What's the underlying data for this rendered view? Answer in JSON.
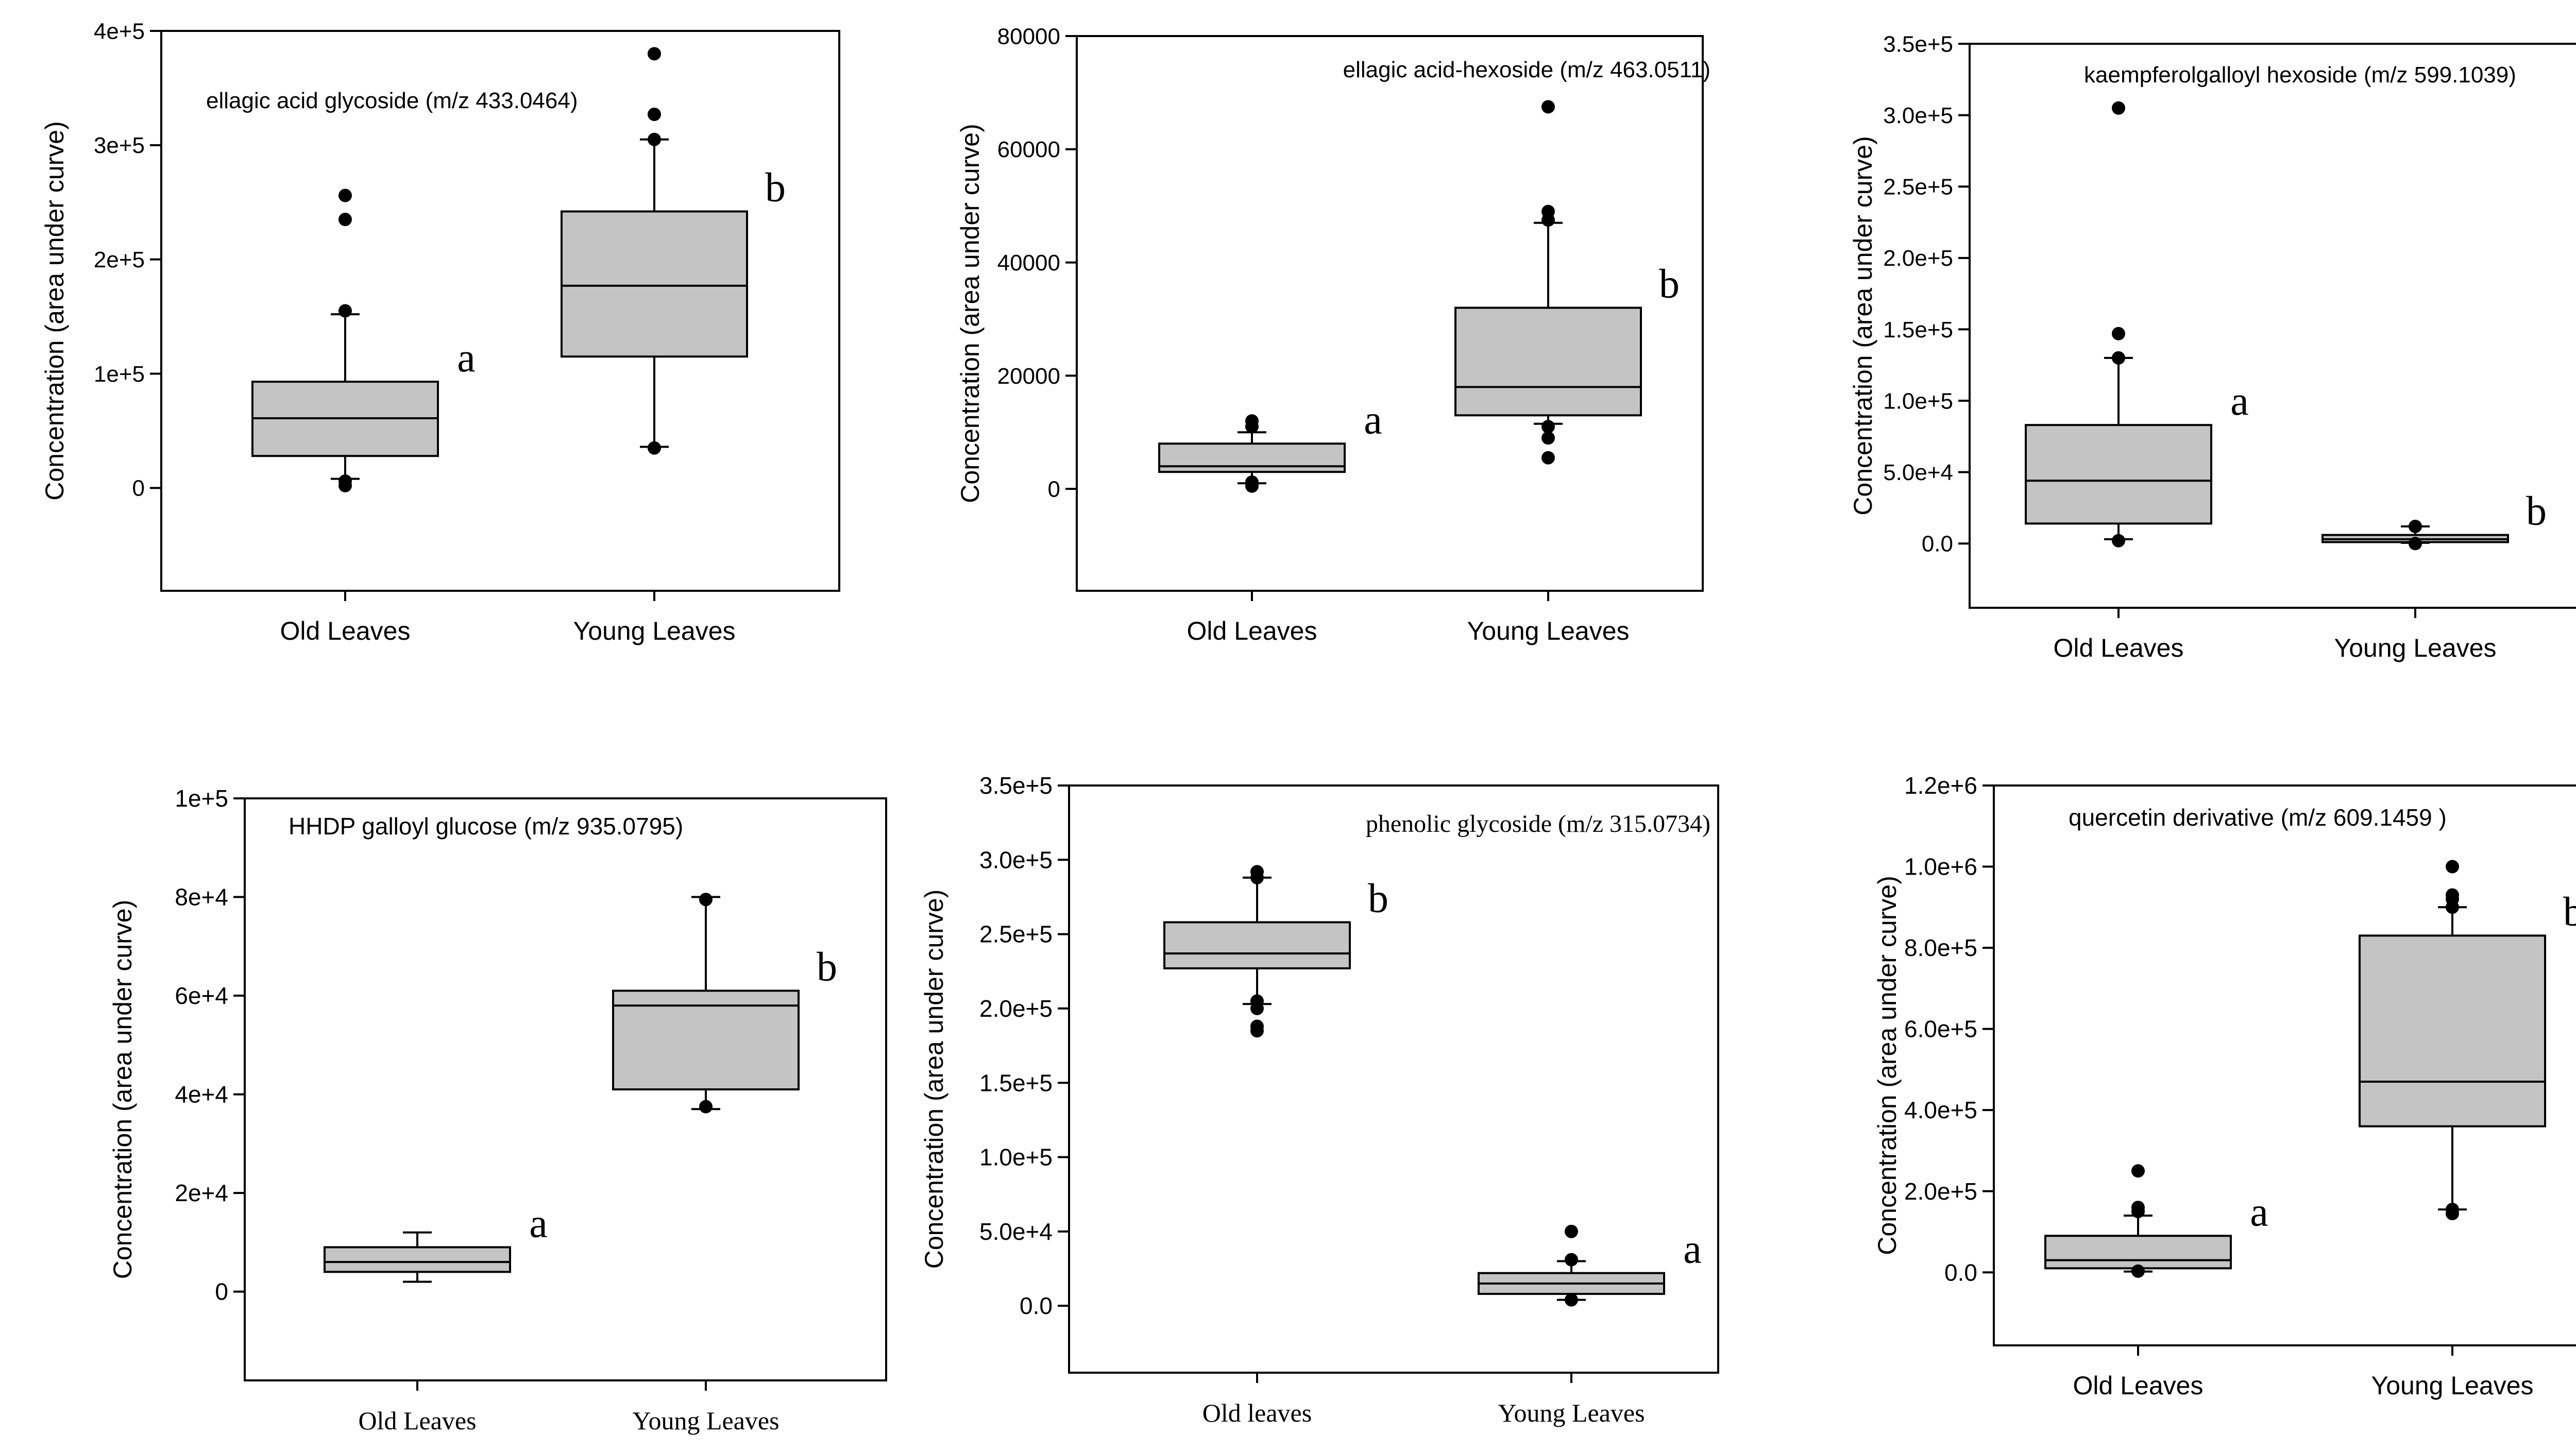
{
  "chart_data": [
    {
      "type": "boxplot",
      "panel": "top-left",
      "title": "ellagic acid glycoside (m/z 433.0464)",
      "ylabel": "Concentration (area under curve)",
      "xlabel": "",
      "ylim": [
        -90000,
        400000
      ],
      "yticks": [
        0,
        100000,
        200000,
        300000,
        400000
      ],
      "ytick_labels": [
        "0",
        "1e+5",
        "2e+5",
        "3e+5",
        "4e+5"
      ],
      "categories": [
        "Old Leaves",
        "Young  Leaves"
      ],
      "boxes": [
        {
          "q1": 28000,
          "median": 61000,
          "q3": 93000,
          "whisker_low": 8000,
          "whisker_high": 152000,
          "outliers": [
            2000,
            6000,
            155000,
            235000,
            256000
          ],
          "letter": "a"
        },
        {
          "q1": 115000,
          "median": 177000,
          "q3": 242000,
          "whisker_low": 36000,
          "whisker_high": 305000,
          "outliers": [
            35000,
            305000,
            327000,
            380000
          ],
          "letter": "b"
        }
      ]
    },
    {
      "type": "boxplot",
      "panel": "top-middle",
      "title": "ellagic acid-hexoside (m/z 463.0511)",
      "ylabel": "Concentration (area under curve)",
      "xlabel": "",
      "ylim": [
        -18000,
        80000
      ],
      "yticks": [
        0,
        20000,
        40000,
        60000,
        80000
      ],
      "ytick_labels": [
        "0",
        "20000",
        "40000",
        "60000",
        "80000"
      ],
      "categories": [
        "Old Leaves",
        "Young  Leaves"
      ],
      "boxes": [
        {
          "q1": 3000,
          "median": 4000,
          "q3": 8000,
          "whisker_low": 1000,
          "whisker_high": 10000,
          "outliers": [
            500,
            1200,
            11000,
            12000
          ],
          "letter": "a"
        },
        {
          "q1": 13000,
          "median": 18000,
          "q3": 32000,
          "whisker_low": 11500,
          "whisker_high": 47000,
          "outliers": [
            5500,
            9000,
            11000,
            47500,
            49000,
            67500
          ],
          "letter": "b"
        }
      ]
    },
    {
      "type": "boxplot",
      "panel": "top-right",
      "title": "kaempferolgalloyl hexoside (m/z 599.1039)",
      "ylabel": "Concentration (area under curve)",
      "xlabel": "",
      "ylim": [
        -45000,
        350000
      ],
      "yticks": [
        0,
        50000,
        100000,
        150000,
        200000,
        250000,
        300000,
        350000
      ],
      "ytick_labels": [
        "0.0",
        "5.0e+4",
        "1.0e+5",
        "1.5e+5",
        "2.0e+5",
        "2.5e+5",
        "3.0e+5",
        "3.5e+5"
      ],
      "categories": [
        "Old Leaves",
        "Young  Leaves"
      ],
      "boxes": [
        {
          "q1": 14000,
          "median": 44000,
          "q3": 83000,
          "whisker_low": 3000,
          "whisker_high": 130000,
          "outliers": [
            2000,
            130000,
            147000,
            305000
          ],
          "letter": "a"
        },
        {
          "q1": 1000,
          "median": 3000,
          "q3": 6000,
          "whisker_low": 500,
          "whisker_high": 12000,
          "outliers": [
            0,
            12000
          ],
          "letter": "b"
        }
      ]
    },
    {
      "type": "boxplot",
      "panel": "bottom-left",
      "title": "HHDP galloyl glucose (m/z 935.0795)",
      "ylabel": "Concentration (area under curve)",
      "xlabel": "",
      "ylim": [
        -18000,
        100000
      ],
      "yticks": [
        0,
        20000,
        40000,
        60000,
        80000,
        100000
      ],
      "ytick_labels": [
        "0",
        "2e+4",
        "4e+4",
        "6e+4",
        "8e+4",
        "1e+5"
      ],
      "categories": [
        "Old Leaves",
        "Young  Leaves"
      ],
      "boxes": [
        {
          "q1": 4000,
          "median": 6000,
          "q3": 9000,
          "whisker_low": 2000,
          "whisker_high": 12000,
          "outliers": [],
          "letter": "a"
        },
        {
          "q1": 41000,
          "median": 58000,
          "q3": 61000,
          "whisker_low": 37000,
          "whisker_high": 80000,
          "outliers": [
            37500,
            79500
          ],
          "letter": "b"
        }
      ]
    },
    {
      "type": "boxplot",
      "panel": "bottom-middle",
      "title": "phenolic glycoside (m/z 315.0734)",
      "ylabel": "Concentration (area under curve)",
      "xlabel": "",
      "ylim": [
        -45000,
        350000
      ],
      "yticks": [
        0,
        50000,
        100000,
        150000,
        200000,
        250000,
        300000,
        350000
      ],
      "ytick_labels": [
        "0.0",
        "5.0e+4",
        "1.0e+5",
        "1.5e+5",
        "2.0e+5",
        "2.5e+5",
        "3.0e+5",
        "3.5e+5"
      ],
      "categories": [
        "Old leaves",
        "Young  Leaves"
      ],
      "boxes": [
        {
          "q1": 227000,
          "median": 237000,
          "q3": 258000,
          "whisker_low": 203000,
          "whisker_high": 288000,
          "outliers": [
            185000,
            188000,
            200000,
            205000,
            288000,
            292000
          ],
          "letter": "b"
        },
        {
          "q1": 8000,
          "median": 15000,
          "q3": 22000,
          "whisker_low": 4000,
          "whisker_high": 30000,
          "outliers": [
            4000,
            31000,
            50000
          ],
          "letter": "a"
        }
      ]
    },
    {
      "type": "boxplot",
      "panel": "bottom-right",
      "title": "quercetin derivative (m/z 609.1459 )",
      "ylabel": "Concentration (area under curve)",
      "xlabel": "",
      "ylim": [
        -180000,
        1200000
      ],
      "yticks": [
        0,
        200000,
        400000,
        600000,
        800000,
        1000000,
        1200000
      ],
      "ytick_labels": [
        "0.0",
        "2.0e+5",
        "4.0e+5",
        "6.0e+5",
        "8.0e+5",
        "1.0e+6",
        "1.2e+6"
      ],
      "categories": [
        "Old Leaves",
        "Young  Leaves"
      ],
      "boxes": [
        {
          "q1": 10000,
          "median": 30000,
          "q3": 90000,
          "whisker_low": 2000,
          "whisker_high": 140000,
          "outliers": [
            3000,
            150000,
            160000,
            250000
          ],
          "letter": "a"
        },
        {
          "q1": 360000,
          "median": 470000,
          "q3": 830000,
          "whisker_low": 155000,
          "whisker_high": 900000,
          "outliers": [
            145000,
            155000,
            900000,
            920000,
            930000,
            1000000
          ],
          "letter": "b"
        }
      ]
    }
  ]
}
